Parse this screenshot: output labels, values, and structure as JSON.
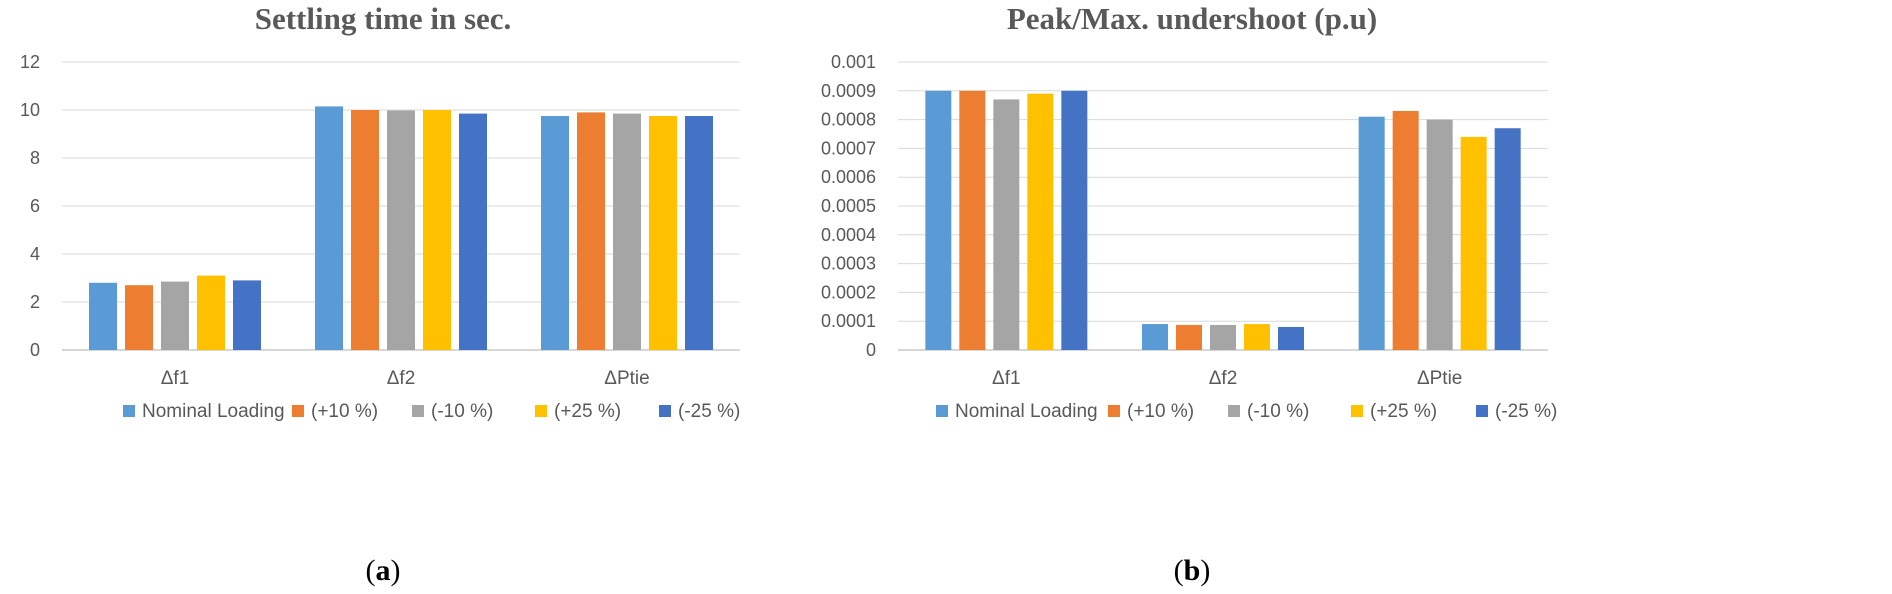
{
  "chart_data": [
    {
      "type": "bar",
      "title": "Settling  time in sec.",
      "categories": [
        "Δf1",
        "Δf2",
        "ΔPtie"
      ],
      "ylim": [
        0,
        12
      ],
      "yticks": [
        "0",
        "2",
        "4",
        "6",
        "8",
        "10",
        "12"
      ],
      "series": [
        {
          "name": "Nominal Loading",
          "values": [
            2.8,
            10.15,
            9.75
          ]
        },
        {
          "name": "(+10 %)",
          "values": [
            2.7,
            10.0,
            9.9
          ]
        },
        {
          "name": "(-10 %)",
          "values": [
            2.85,
            9.98,
            9.85
          ]
        },
        {
          "name": "(+25 %)",
          "values": [
            3.1,
            10.0,
            9.75
          ]
        },
        {
          "name": "(-25 %)",
          "values": [
            2.9,
            9.85,
            9.75
          ]
        }
      ],
      "xlabel": "",
      "ylabel": "",
      "legend_position": "bottom",
      "grid": true,
      "caption_open": "(",
      "caption_letter": "a",
      "caption_close": ")"
    },
    {
      "type": "bar",
      "title": "Peak/Max. undershoot (p.u)",
      "categories": [
        "Δf1",
        "Δf2",
        "ΔPtie"
      ],
      "ylim": [
        0,
        0.001
      ],
      "yticks": [
        "0",
        "0.0001",
        "0.0002",
        "0.0003",
        "0.0004",
        "0.0005",
        "0.0006",
        "0.0007",
        "0.0008",
        "0.0009",
        "0.001"
      ],
      "series": [
        {
          "name": "Nominal Loading",
          "values": [
            0.0009,
            9e-05,
            0.00081
          ]
        },
        {
          "name": "(+10 %)",
          "values": [
            0.0009,
            8.7e-05,
            0.00083
          ]
        },
        {
          "name": "(-10 %)",
          "values": [
            0.00087,
            8.7e-05,
            0.0008
          ]
        },
        {
          "name": "(+25 %)",
          "values": [
            0.00089,
            9e-05,
            0.00074
          ]
        },
        {
          "name": "(-25 %)",
          "values": [
            0.0009,
            8e-05,
            0.00077
          ]
        }
      ],
      "xlabel": "",
      "ylabel": "",
      "legend_position": "bottom",
      "grid": true,
      "caption_open": "(",
      "caption_letter": "b",
      "caption_close": ")"
    }
  ],
  "colors": [
    "#5b9bd5",
    "#ed7d31",
    "#a5a5a5",
    "#ffc000",
    "#4472c4"
  ]
}
